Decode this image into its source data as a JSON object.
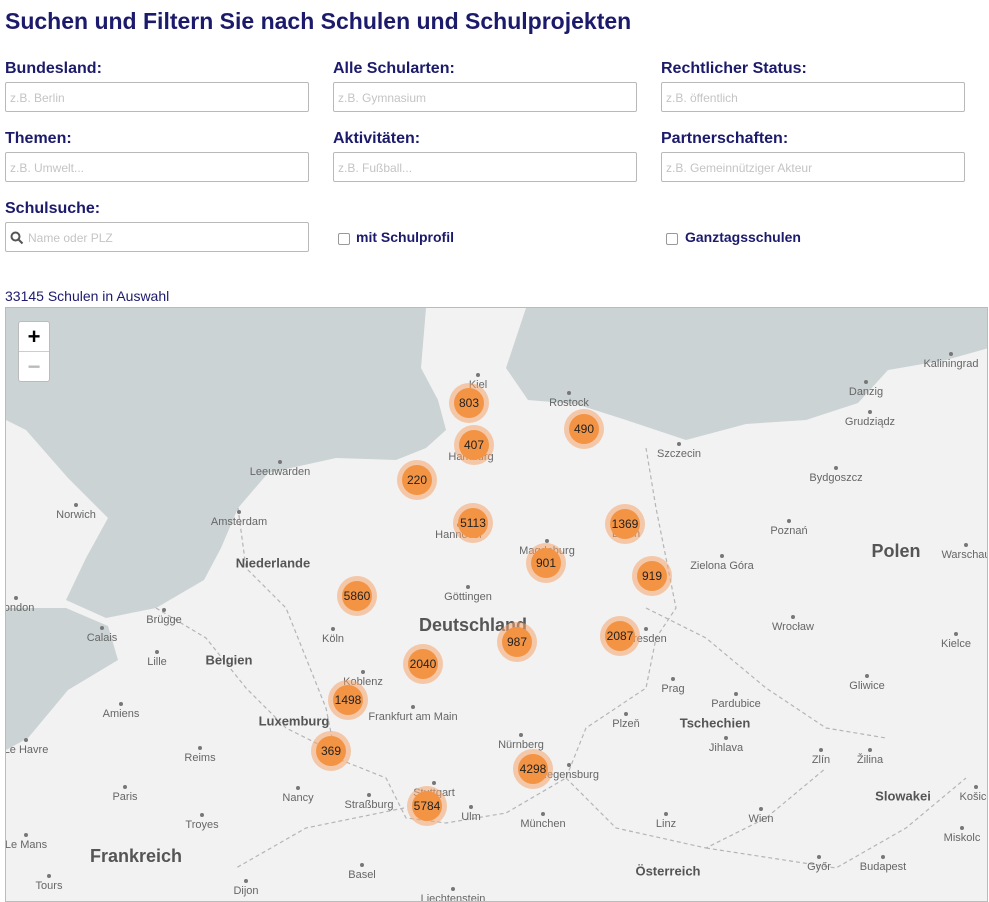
{
  "header": {
    "title": "Suchen und Filtern Sie nach Schulen und Schulprojekten"
  },
  "filters": [
    {
      "label": "Bundesland:",
      "placeholder": "z.B. Berlin"
    },
    {
      "label": "Alle Schularten:",
      "placeholder": "z.B. Gymnasium"
    },
    {
      "label": "Rechtlicher Status:",
      "placeholder": "z.B. öffentlich"
    },
    {
      "label": "Themen:",
      "placeholder": "z.B. Umwelt..."
    },
    {
      "label": "Aktivitäten:",
      "placeholder": "z.B. Fußball..."
    },
    {
      "label": "Partnerschaften:",
      "placeholder": "z.B. Gemeinnütziger Akteur"
    }
  ],
  "search": {
    "label": "Schulsuche:",
    "placeholder": "Name oder PLZ"
  },
  "checkboxes": [
    "mit Schulprofil",
    "Ganztagsschulen"
  ],
  "result_count": "33145 Schulen in Auswahl",
  "map": {
    "zoom_in": "+",
    "zoom_out": "−",
    "clusters": [
      "803",
      "407",
      "490",
      "220",
      "5113",
      "1369",
      "901",
      "919",
      "5860",
      "2087",
      "987",
      "2040",
      "1498",
      "369",
      "4298",
      "5784"
    ],
    "places": [
      "Kaliningrad",
      "Danzig",
      "Kiel",
      "Rostock",
      "Hamburg",
      "Szczecin",
      "Grudziądz",
      "Bydgoszcz",
      "Leeuwarden",
      "Norwich",
      "Amsterdam",
      "Hannover",
      "Magdeburg",
      "Berlin",
      "Poznań",
      "Warschau",
      "Zielona Góra",
      "Göttingen",
      "London",
      "Brügge",
      "Calais",
      "Köln",
      "Dresden",
      "Wrocław",
      "Kielce",
      "Lille",
      "Koblenz",
      "Prag",
      "Gliwice",
      "Pardubice",
      "Amiens",
      "Frankfurt am Main",
      "Plzeň",
      "Jihlava",
      "Le Havre",
      "Reims",
      "Nürnberg",
      "Regensburg",
      "Zlín",
      "Žilina",
      "Paris",
      "Nancy",
      "Stuttgart",
      "Straßburg",
      "Ulm",
      "Košice",
      "Troyes",
      "München",
      "Linz",
      "Wien",
      "Miskolc",
      "Le Mans",
      "Győr",
      "Budapest",
      "Basel",
      "Tours",
      "Dijon",
      "Liechtenstein"
    ],
    "countries": [
      "Niederlande",
      "Polen",
      "Deutschland",
      "Belgien",
      "Luxemburg",
      "Tschechien",
      "Slowakei",
      "Frankreich",
      "Österreich"
    ]
  }
}
